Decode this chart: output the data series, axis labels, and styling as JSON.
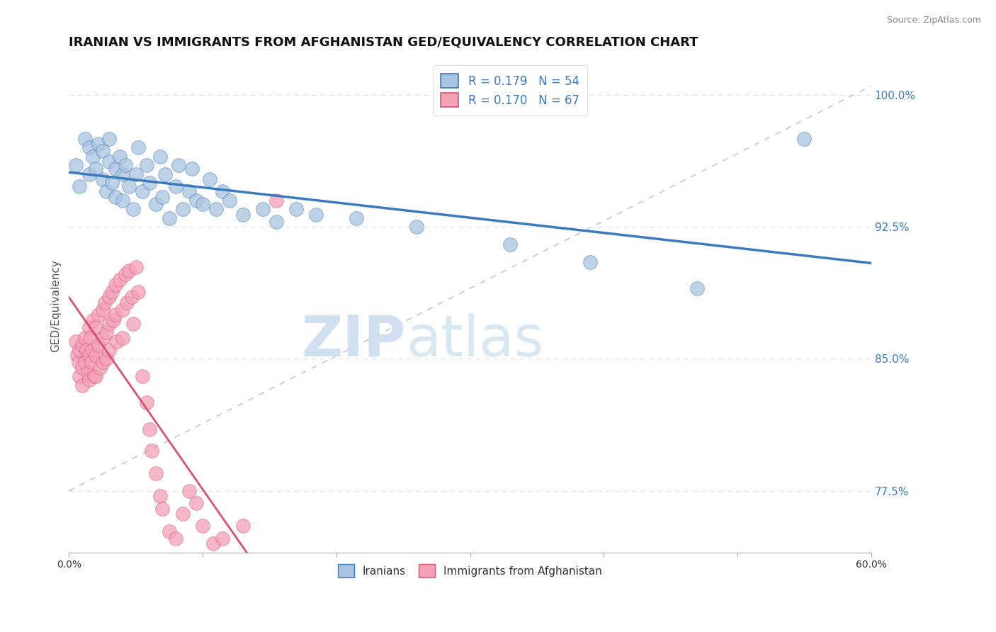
{
  "title": "IRANIAN VS IMMIGRANTS FROM AFGHANISTAN GED/EQUIVALENCY CORRELATION CHART",
  "source": "Source: ZipAtlas.com",
  "ylabel": "GED/Equivalency",
  "xlim": [
    0.0,
    0.6
  ],
  "ylim": [
    0.74,
    1.02
  ],
  "xticks": [
    0.0,
    0.1,
    0.2,
    0.3,
    0.4,
    0.5,
    0.6
  ],
  "yticks_right": [
    0.775,
    0.85,
    0.925,
    1.0
  ],
  "yticklabels_right": [
    "77.5%",
    "85.0%",
    "92.5%",
    "100.0%"
  ],
  "blue_color": "#a8c4e0",
  "pink_color": "#f4a0b8",
  "blue_line_color": "#3a7abf",
  "pink_line_color": "#d95070",
  "diag_line_color": "#c8c8c8",
  "label1": "Iranians",
  "label2": "Immigrants from Afghanistan",
  "blue_scatter_x": [
    0.005,
    0.008,
    0.012,
    0.015,
    0.015,
    0.018,
    0.02,
    0.022,
    0.025,
    0.025,
    0.028,
    0.03,
    0.03,
    0.032,
    0.035,
    0.035,
    0.038,
    0.04,
    0.04,
    0.042,
    0.045,
    0.048,
    0.05,
    0.052,
    0.055,
    0.058,
    0.06,
    0.065,
    0.068,
    0.07,
    0.072,
    0.075,
    0.08,
    0.082,
    0.085,
    0.09,
    0.092,
    0.095,
    0.1,
    0.105,
    0.11,
    0.115,
    0.12,
    0.13,
    0.145,
    0.155,
    0.17,
    0.185,
    0.215,
    0.26,
    0.33,
    0.39,
    0.47,
    0.55
  ],
  "blue_scatter_y": [
    0.96,
    0.948,
    0.975,
    0.97,
    0.955,
    0.965,
    0.958,
    0.972,
    0.952,
    0.968,
    0.945,
    0.962,
    0.975,
    0.95,
    0.958,
    0.942,
    0.965,
    0.955,
    0.94,
    0.96,
    0.948,
    0.935,
    0.955,
    0.97,
    0.945,
    0.96,
    0.95,
    0.938,
    0.965,
    0.942,
    0.955,
    0.93,
    0.948,
    0.96,
    0.935,
    0.945,
    0.958,
    0.94,
    0.938,
    0.952,
    0.935,
    0.945,
    0.94,
    0.932,
    0.935,
    0.928,
    0.935,
    0.932,
    0.93,
    0.925,
    0.915,
    0.905,
    0.89,
    0.975
  ],
  "pink_scatter_x": [
    0.005,
    0.006,
    0.007,
    0.008,
    0.008,
    0.01,
    0.01,
    0.01,
    0.012,
    0.012,
    0.013,
    0.014,
    0.015,
    0.015,
    0.015,
    0.016,
    0.017,
    0.018,
    0.018,
    0.019,
    0.02,
    0.02,
    0.02,
    0.022,
    0.022,
    0.023,
    0.025,
    0.025,
    0.025,
    0.027,
    0.028,
    0.028,
    0.03,
    0.03,
    0.03,
    0.032,
    0.033,
    0.035,
    0.035,
    0.036,
    0.038,
    0.04,
    0.04,
    0.042,
    0.043,
    0.045,
    0.047,
    0.048,
    0.05,
    0.052,
    0.055,
    0.058,
    0.06,
    0.062,
    0.065,
    0.068,
    0.07,
    0.075,
    0.08,
    0.085,
    0.09,
    0.095,
    0.1,
    0.108,
    0.115,
    0.13,
    0.155
  ],
  "pink_scatter_y": [
    0.86,
    0.852,
    0.848,
    0.855,
    0.84,
    0.858,
    0.845,
    0.835,
    0.862,
    0.848,
    0.855,
    0.842,
    0.868,
    0.852,
    0.838,
    0.862,
    0.848,
    0.872,
    0.855,
    0.84,
    0.868,
    0.852,
    0.84,
    0.875,
    0.858,
    0.845,
    0.878,
    0.862,
    0.848,
    0.882,
    0.865,
    0.85,
    0.885,
    0.87,
    0.855,
    0.888,
    0.872,
    0.892,
    0.875,
    0.86,
    0.895,
    0.878,
    0.862,
    0.898,
    0.882,
    0.9,
    0.885,
    0.87,
    0.902,
    0.888,
    0.84,
    0.825,
    0.81,
    0.798,
    0.785,
    0.772,
    0.765,
    0.752,
    0.748,
    0.762,
    0.775,
    0.768,
    0.755,
    0.745,
    0.748,
    0.755,
    0.94
  ],
  "watermark": "ZIPatlas",
  "watermark_color": "#d0e0f0",
  "title_fontsize": 13,
  "axis_label_fontsize": 11,
  "tick_fontsize": 10,
  "background_color": "#ffffff",
  "grid_color": "#e0e0e0"
}
